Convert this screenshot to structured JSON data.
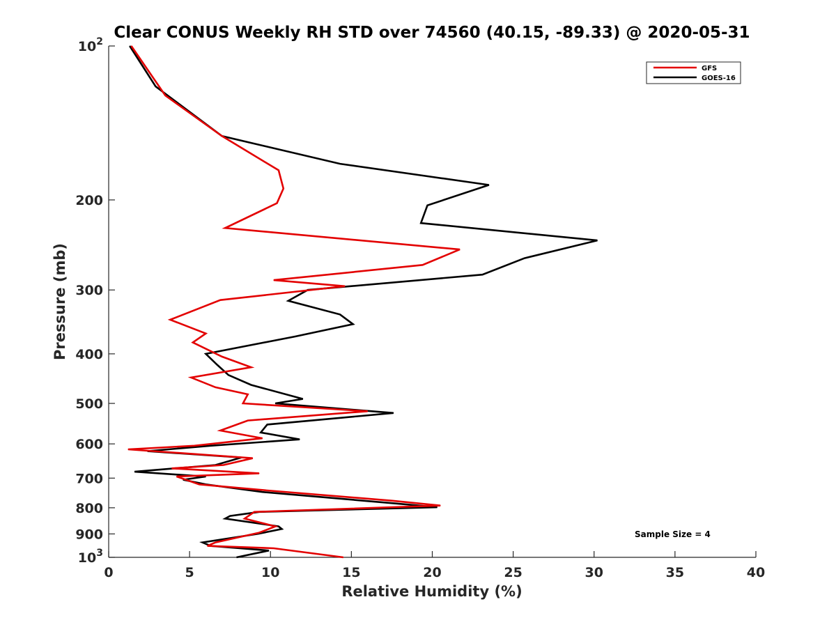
{
  "chart_data": {
    "type": "line",
    "title": "Clear CONUS Weekly RH STD over 74560 (40.15, -89.33) @ 2020-05-31",
    "xlabel": "Relative Humidity (%)",
    "ylabel": "Pressure (mb)",
    "xlim": [
      0,
      40
    ],
    "ylim": [
      100,
      1000
    ],
    "y_scale": "log",
    "y_reversed": true,
    "grid": false,
    "legend_position": "top-right",
    "x_ticks": [
      0,
      5,
      10,
      15,
      20,
      25,
      30,
      35,
      40
    ],
    "y_ticks": [
      100,
      200,
      300,
      400,
      500,
      600,
      700,
      800,
      900,
      1000
    ],
    "y_tick_labels": [
      {
        "base": "10",
        "exp": "2"
      },
      {
        "base": "200",
        "exp": ""
      },
      {
        "base": "300",
        "exp": ""
      },
      {
        "base": "400",
        "exp": ""
      },
      {
        "base": "500",
        "exp": ""
      },
      {
        "base": "600",
        "exp": ""
      },
      {
        "base": "700",
        "exp": ""
      },
      {
        "base": "800",
        "exp": ""
      },
      {
        "base": "900",
        "exp": ""
      },
      {
        "base": "10",
        "exp": "3"
      }
    ],
    "annotation": "Sample Size = 4",
    "series": [
      {
        "name": "GFS",
        "color": "#e30000",
        "points": [
          [
            1.4,
            100
          ],
          [
            3.5,
            125
          ],
          [
            7,
            150
          ],
          [
            10.5,
            175
          ],
          [
            10.8,
            190
          ],
          [
            10.4,
            203
          ],
          [
            7.2,
            227
          ],
          [
            21.7,
            250
          ],
          [
            19.4,
            268
          ],
          [
            10.2,
            287
          ],
          [
            14.6,
            295
          ],
          [
            6.9,
            314
          ],
          [
            3.8,
            343
          ],
          [
            6,
            365
          ],
          [
            5.2,
            380
          ],
          [
            7,
            405
          ],
          [
            8.8,
            425
          ],
          [
            5.1,
            445
          ],
          [
            6.6,
            465
          ],
          [
            8.6,
            480
          ],
          [
            8.3,
            500
          ],
          [
            16,
            518
          ],
          [
            8.6,
            540
          ],
          [
            6.9,
            565
          ],
          [
            9.5,
            585
          ],
          [
            5.3,
            605
          ],
          [
            1.2,
            615
          ],
          [
            8.9,
            640
          ],
          [
            7.1,
            660
          ],
          [
            3.9,
            670
          ],
          [
            9.3,
            685
          ],
          [
            4.2,
            695
          ],
          [
            5.6,
            720
          ],
          [
            9.8,
            740
          ],
          [
            17.5,
            775
          ],
          [
            20.5,
            792
          ],
          [
            9,
            815
          ],
          [
            8.4,
            840
          ],
          [
            10.3,
            870
          ],
          [
            9.3,
            895
          ],
          [
            6.6,
            935
          ],
          [
            6.1,
            950
          ],
          [
            10.2,
            960
          ],
          [
            14.5,
            1000
          ]
        ]
      },
      {
        "name": "GOES-16",
        "color": "#000000",
        "points": [
          [
            1.3,
            100
          ],
          [
            2.9,
            120
          ],
          [
            7,
            150
          ],
          [
            14.3,
            170
          ],
          [
            23.5,
            187
          ],
          [
            19.7,
            205
          ],
          [
            19.3,
            222
          ],
          [
            30.2,
            240
          ],
          [
            25.7,
            260
          ],
          [
            23.1,
            280
          ],
          [
            12.3,
            300
          ],
          [
            11.1,
            315
          ],
          [
            14.3,
            335
          ],
          [
            15.1,
            350
          ],
          [
            11.5,
            370
          ],
          [
            6,
            400
          ],
          [
            6.7,
            420
          ],
          [
            7.4,
            440
          ],
          [
            8.8,
            460
          ],
          [
            12,
            490
          ],
          [
            10.3,
            500
          ],
          [
            17.6,
            522
          ],
          [
            9.8,
            550
          ],
          [
            9.4,
            570
          ],
          [
            11.8,
            588
          ],
          [
            6.3,
            605
          ],
          [
            2.4,
            620
          ],
          [
            8.2,
            638
          ],
          [
            6.6,
            660
          ],
          [
            1.6,
            680
          ],
          [
            6,
            695
          ],
          [
            4.6,
            705
          ],
          [
            6,
            720
          ],
          [
            9.5,
            745
          ],
          [
            17.8,
            785
          ],
          [
            20.3,
            798
          ],
          [
            9.3,
            815
          ],
          [
            7.5,
            830
          ],
          [
            7.2,
            840
          ],
          [
            10.5,
            870
          ],
          [
            10.7,
            880
          ],
          [
            9.2,
            900
          ],
          [
            5.8,
            935
          ],
          [
            6.3,
            950
          ],
          [
            9.9,
            970
          ],
          [
            7.9,
            1000
          ]
        ]
      }
    ]
  }
}
